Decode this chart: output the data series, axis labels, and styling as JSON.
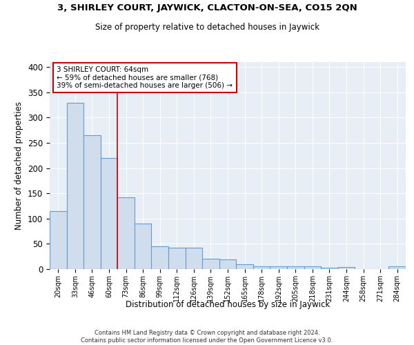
{
  "title1": "3, SHIRLEY COURT, JAYWICK, CLACTON-ON-SEA, CO15 2QN",
  "title2": "Size of property relative to detached houses in Jaywick",
  "xlabel": "Distribution of detached houses by size in Jaywick",
  "ylabel": "Number of detached properties",
  "categories": [
    "20sqm",
    "33sqm",
    "46sqm",
    "60sqm",
    "73sqm",
    "86sqm",
    "99sqm",
    "112sqm",
    "126sqm",
    "139sqm",
    "152sqm",
    "165sqm",
    "178sqm",
    "192sqm",
    "205sqm",
    "218sqm",
    "231sqm",
    "244sqm",
    "258sqm",
    "271sqm",
    "284sqm"
  ],
  "values": [
    115,
    330,
    265,
    220,
    142,
    90,
    45,
    43,
    42,
    20,
    19,
    9,
    5,
    6,
    5,
    5,
    3,
    4,
    0,
    0,
    5
  ],
  "bar_color": "#cfdded",
  "bar_edge_color": "#6699cc",
  "red_line_x": 3.5,
  "annotation_text": "3 SHIRLEY COURT: 64sqm\n← 59% of detached houses are smaller (768)\n39% of semi-detached houses are larger (506) →",
  "annotation_box_color": "#ffffff",
  "annotation_box_edge": "#cc0000",
  "background_color": "#e8eef5",
  "footer_line1": "Contains HM Land Registry data © Crown copyright and database right 2024.",
  "footer_line2": "Contains public sector information licensed under the Open Government Licence v3.0.",
  "ylim": [
    0,
    410
  ],
  "yticks": [
    0,
    50,
    100,
    150,
    200,
    250,
    300,
    350,
    400
  ]
}
